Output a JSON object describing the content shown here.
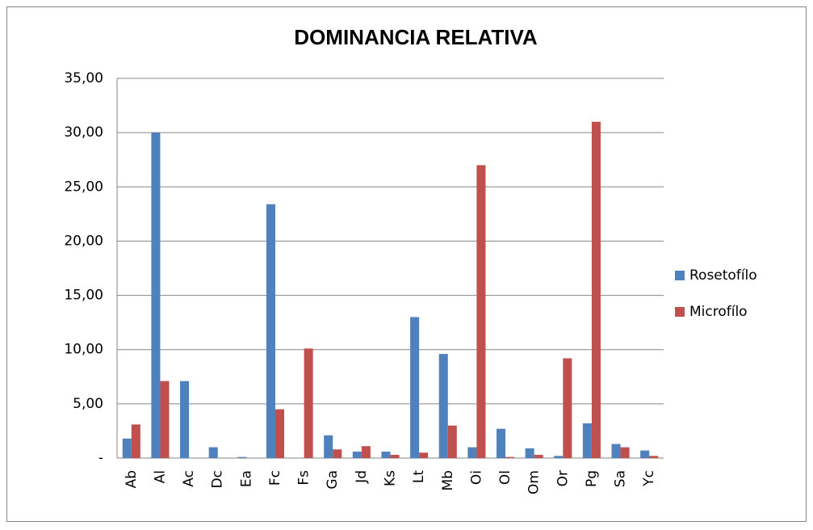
{
  "chart_data": {
    "type": "bar",
    "title": "DOMINANCIA RELATIVA",
    "categories": [
      "Ab",
      "Al",
      "Ac",
      "Dc",
      "Ea",
      "Fc",
      "Fs",
      "Ga",
      "Jd",
      "Ks",
      "Lt",
      "Mb",
      "Oi",
      "Ol",
      "Om",
      "Or",
      "Pg",
      "Sa",
      "Yc"
    ],
    "series": [
      {
        "name": "Rosetofílo",
        "color": "#4f81bd",
        "values": [
          1.8,
          30.0,
          7.1,
          1.0,
          0.1,
          23.4,
          0,
          2.1,
          0.6,
          0.6,
          13.0,
          9.6,
          1.0,
          2.7,
          0.9,
          0.2,
          3.2,
          1.3,
          0.7
        ]
      },
      {
        "name": "Microfílo",
        "color": "#c0504d",
        "values": [
          3.1,
          7.1,
          0,
          0,
          0,
          4.5,
          10.1,
          0.8,
          1.1,
          0.3,
          0.5,
          3.0,
          27.0,
          0.1,
          0.3,
          9.2,
          31.0,
          1.0,
          0.2
        ]
      }
    ],
    "ylim": [
      0,
      35
    ],
    "yticks": [
      {
        "value": 0,
        "label": "-"
      },
      {
        "value": 5,
        "label": "5,00"
      },
      {
        "value": 10,
        "label": "10,00"
      },
      {
        "value": 15,
        "label": "15,00"
      },
      {
        "value": 20,
        "label": "20,00"
      },
      {
        "value": 25,
        "label": "25,00"
      },
      {
        "value": 30,
        "label": "30,00"
      },
      {
        "value": 35,
        "label": "35,00"
      }
    ],
    "grid": true,
    "legend": "right"
  }
}
